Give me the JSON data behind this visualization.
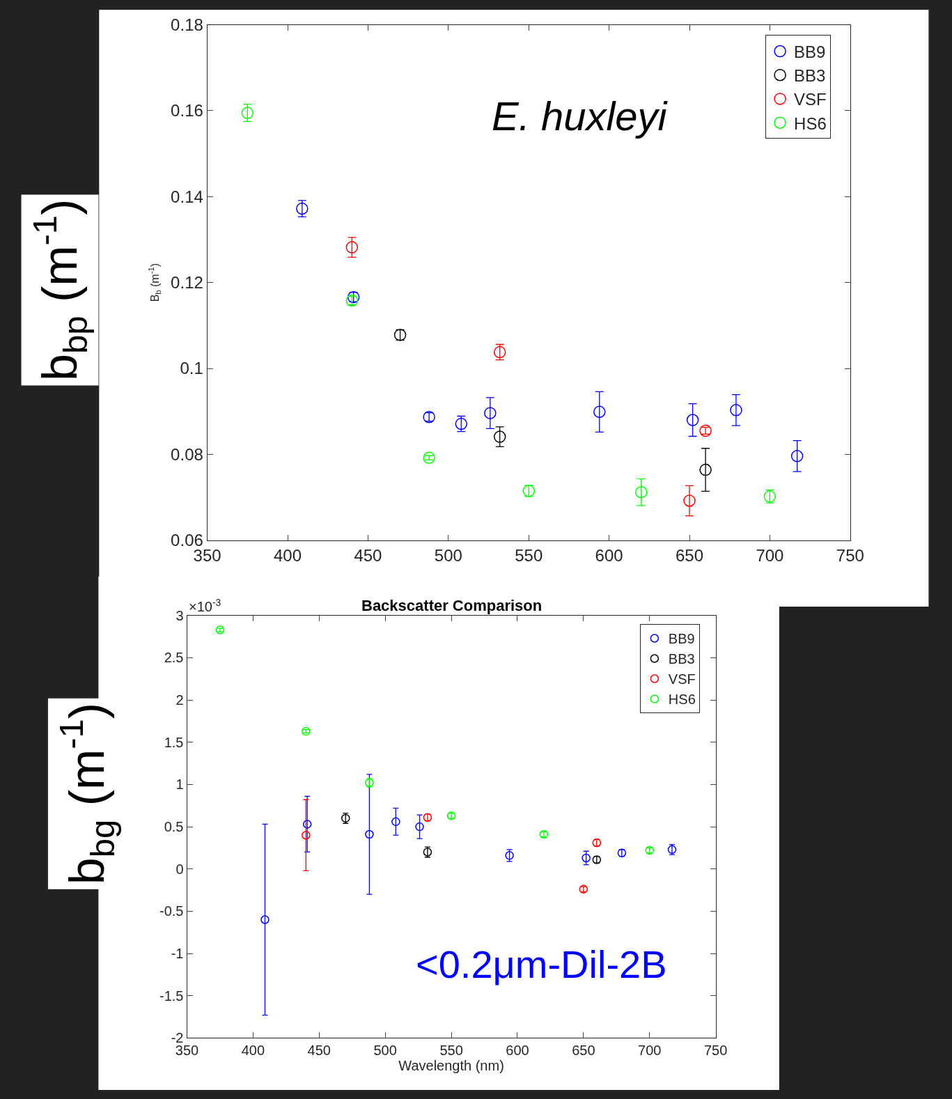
{
  "chart_data": [
    {
      "type": "scatter",
      "ylabel": "B$_{b}$ (m$^{-1}$)",
      "legend": "top right",
      "annotations": [
        "E. huxleyi",
        "b$_{bp}$ (m$^{-1}$)"
      ],
      "xlim": [
        350,
        750
      ],
      "xticks": [
        350,
        400,
        450,
        500,
        550,
        600,
        650,
        700,
        750
      ],
      "ylim": [
        0.06,
        0.18
      ],
      "yticks": [
        0.06,
        0.08,
        0.1,
        0.12,
        0.14,
        0.16,
        0.18
      ],
      "series": [
        {
          "name": "BB9",
          "color": "#0000ff",
          "x": [
            409,
            441,
            488,
            508,
            526,
            594,
            652,
            679,
            717
          ],
          "values": [
            0.1372,
            0.1166,
            0.0887,
            0.0871,
            0.0896,
            0.0899,
            0.088,
            0.0903,
            0.0796
          ],
          "errors": [
            0.0019,
            0.0011,
            0.001,
            0.0018,
            0.0036,
            0.0047,
            0.0038,
            0.0036,
            0.0036
          ]
        },
        {
          "name": "BB3",
          "color": "#000000",
          "x": [
            470,
            532,
            660
          ],
          "values": [
            0.1078,
            0.0841,
            0.0764
          ],
          "errors": [
            0.0012,
            0.0023,
            0.005
          ]
        },
        {
          "name": "VSF",
          "color": "#ff0000",
          "x": [
            440,
            532,
            650,
            660
          ],
          "values": [
            0.1282,
            0.1038,
            0.0692,
            0.0855
          ],
          "errors": [
            0.0023,
            0.0018,
            0.0035,
            0.0008
          ]
        },
        {
          "name": "HS6",
          "color": "#00ff00",
          "x": [
            375,
            440,
            488,
            550,
            620,
            700
          ],
          "values": [
            0.1595,
            0.1158,
            0.0792,
            0.0715,
            0.0712,
            0.0702
          ],
          "errors": [
            0.002,
            0.001,
            0.0005,
            0.0013,
            0.0031,
            0.0015
          ]
        }
      ]
    },
    {
      "type": "scatter",
      "title": "Backscatter Comparison",
      "xlabel": "Wavelength (nm)",
      "legend": "top right",
      "annotations": [
        "×10$^{-3}$",
        "<0.2μm-Dil-2B",
        "b$_{bg}$ (m$^{-1}$)"
      ],
      "xlim": [
        350,
        750
      ],
      "xticks": [
        350,
        400,
        450,
        500,
        550,
        600,
        650,
        700,
        750
      ],
      "ylim": [
        -2,
        3
      ],
      "yticks": [
        -2,
        -1.5,
        -1,
        -0.5,
        0,
        0.5,
        1,
        1.5,
        2,
        2.5,
        3
      ],
      "series": [
        {
          "name": "BB9",
          "color": "#0000ff",
          "x": [
            409,
            441,
            488,
            508,
            526,
            594,
            652,
            679,
            717
          ],
          "values": [
            -0.6,
            0.53,
            0.41,
            0.56,
            0.5,
            0.16,
            0.13,
            0.19,
            0.23
          ],
          "errors": [
            1.13,
            0.33,
            0.71,
            0.16,
            0.14,
            0.07,
            0.08,
            0.04,
            0.06
          ]
        },
        {
          "name": "BB3",
          "color": "#000000",
          "x": [
            470,
            532,
            660
          ],
          "values": [
            0.6,
            0.2,
            0.11
          ],
          "errors": [
            0.06,
            0.06,
            0.04
          ]
        },
        {
          "name": "VSF",
          "color": "#ff0000",
          "x": [
            440,
            532,
            650,
            660
          ],
          "values": [
            0.4,
            0.61,
            -0.24,
            0.31
          ],
          "errors": [
            0.42,
            0.04,
            0.03,
            0.04
          ]
        },
        {
          "name": "HS6",
          "color": "#00ff00",
          "x": [
            375,
            440,
            488,
            550,
            620,
            700
          ],
          "values": [
            2.83,
            1.63,
            1.02,
            0.63,
            0.41,
            0.22
          ],
          "errors": [
            0.02,
            0.02,
            0.05,
            0.03,
            0.03,
            0.03
          ]
        }
      ]
    }
  ]
}
